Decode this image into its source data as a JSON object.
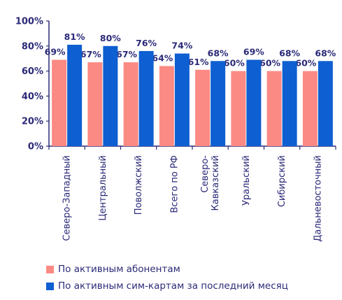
{
  "chart_data": {
    "type": "bar",
    "title": "",
    "xlabel": "",
    "ylabel": "",
    "ylim": [
      0,
      100
    ],
    "y_ticks": [
      0,
      20,
      40,
      60,
      80,
      100
    ],
    "y_tick_suffix": "%",
    "grid": false,
    "legend_position": "bottom",
    "categories": [
      [
        "Северо-Западный"
      ],
      [
        "Центральный"
      ],
      [
        "Поволжский"
      ],
      [
        "Всего по РФ"
      ],
      [
        "Северо-",
        "Кавказский"
      ],
      [
        "Уральский"
      ],
      [
        "Сибирский"
      ],
      [
        "Дальневосточный"
      ]
    ],
    "series": [
      {
        "name": "По активным абонентам",
        "color": "#fb8a84",
        "values": [
          69,
          67,
          67,
          64,
          61,
          60,
          60,
          60
        ]
      },
      {
        "name": "По активным сим-картам за последний месяц",
        "color": "#0e5fd1",
        "values": [
          81,
          80,
          76,
          74,
          68,
          69,
          68,
          68
        ]
      }
    ],
    "data_labels": [
      [
        "69%",
        "67%",
        "67%",
        "64%",
        "61%",
        "60%",
        "60%",
        "60%"
      ],
      [
        "81%",
        "80%",
        "76%",
        "74%",
        "68%",
        "69%",
        "68%",
        "68%"
      ]
    ],
    "text_color": "#2b2a78",
    "axis_color": "#2b2a78"
  }
}
